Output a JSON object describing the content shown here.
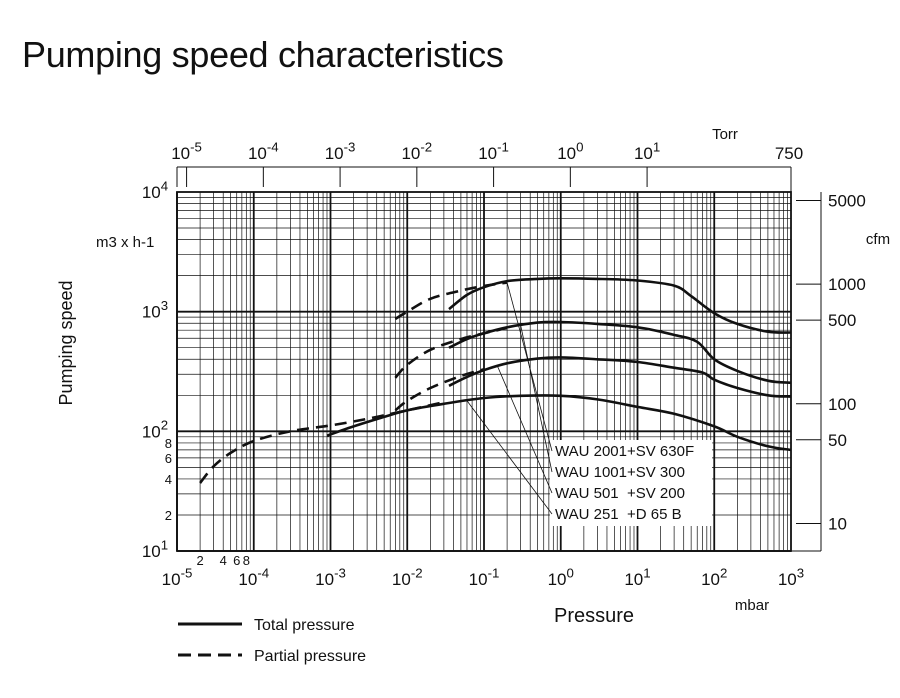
{
  "page": {
    "title": "Pumping speed characteristics"
  },
  "chart_data": {
    "type": "line",
    "x_scale": "log",
    "y_scale": "log",
    "xlim": [
      1e-05,
      1000
    ],
    "ylim": [
      10,
      10000
    ],
    "grid": true,
    "x_unit": "mbar",
    "xlabel": "Pressure",
    "ylabel": "Pumping speed",
    "y_unit_left": "m3 x h-1",
    "x_ticks": [
      {
        "value": 1e-05,
        "base": "10",
        "exp": "-5"
      },
      {
        "value": 0.0001,
        "base": "10",
        "exp": "-4"
      },
      {
        "value": 0.001,
        "base": "10",
        "exp": "-3"
      },
      {
        "value": 0.01,
        "base": "10",
        "exp": "-2"
      },
      {
        "value": 0.1,
        "base": "10",
        "exp": "-1"
      },
      {
        "value": 1,
        "base": "10",
        "exp": "0"
      },
      {
        "value": 10,
        "base": "10",
        "exp": "1"
      },
      {
        "value": 100,
        "base": "10",
        "exp": "2"
      },
      {
        "value": 1000,
        "base": "10",
        "exp": "3"
      }
    ],
    "x_minor_labels": [
      {
        "value": 2e-05,
        "label": "2"
      },
      {
        "value": 4e-05,
        "label": "4"
      },
      {
        "value": 6e-05,
        "label": "6"
      },
      {
        "value": 8e-05,
        "label": "8"
      }
    ],
    "y_ticks": [
      {
        "value": 10,
        "base": "10",
        "exp": "1"
      },
      {
        "value": 100,
        "base": "10",
        "exp": "2"
      },
      {
        "value": 1000,
        "base": "10",
        "exp": "3"
      },
      {
        "value": 10000,
        "base": "10",
        "exp": "4"
      }
    ],
    "y_minor_labels": [
      {
        "value": 20,
        "label": "2"
      },
      {
        "value": 40,
        "label": "4"
      },
      {
        "value": 60,
        "label": "6"
      },
      {
        "value": 80,
        "label": "8"
      }
    ],
    "torr_axis": {
      "unit": "Torr",
      "ticks": [
        {
          "value": 1e-05,
          "base": "10",
          "exp": "-5"
        },
        {
          "value": 0.0001,
          "base": "10",
          "exp": "-4"
        },
        {
          "value": 0.001,
          "base": "10",
          "exp": "-3"
        },
        {
          "value": 0.01,
          "base": "10",
          "exp": "-2"
        },
        {
          "value": 0.1,
          "base": "10",
          "exp": "-1"
        },
        {
          "value": 1,
          "base": "10",
          "exp": "0"
        },
        {
          "value": 10,
          "base": "10",
          "exp": "1"
        },
        {
          "value": 750,
          "base": "750",
          "exp": ""
        }
      ]
    },
    "cfm_axis": {
      "unit": "cfm",
      "ticks": [
        {
          "value": 5000,
          "label": "5000"
        },
        {
          "value": 1000,
          "label": "1000"
        },
        {
          "value": 500,
          "label": "500"
        },
        {
          "value": 100,
          "label": "100"
        },
        {
          "value": 50,
          "label": "50"
        },
        {
          "value": 10,
          "label": "10"
        }
      ]
    },
    "series": [
      {
        "name": "WAU 2001+SV 630F",
        "dashed": [
          [
            0.007,
            870
          ],
          [
            0.01,
            1000
          ],
          [
            0.02,
            1280
          ],
          [
            0.05,
            1500
          ],
          [
            0.1,
            1640
          ],
          [
            0.2,
            1750
          ]
        ],
        "solid": [
          [
            0.035,
            1050
          ],
          [
            0.06,
            1380
          ],
          [
            0.1,
            1600
          ],
          [
            0.2,
            1800
          ],
          [
            0.5,
            1880
          ],
          [
            1,
            1900
          ],
          [
            3,
            1880
          ],
          [
            10,
            1820
          ],
          [
            30,
            1650
          ],
          [
            50,
            1350
          ],
          [
            100,
            970
          ],
          [
            200,
            790
          ],
          [
            500,
            680
          ],
          [
            1000,
            670
          ]
        ]
      },
      {
        "name": "WAU 1001+SV 300",
        "dashed": [
          [
            0.007,
            280
          ],
          [
            0.01,
            360
          ],
          [
            0.02,
            480
          ],
          [
            0.05,
            590
          ],
          [
            0.1,
            660
          ],
          [
            0.2,
            730
          ]
        ],
        "solid": [
          [
            0.035,
            500
          ],
          [
            0.06,
            590
          ],
          [
            0.1,
            660
          ],
          [
            0.2,
            740
          ],
          [
            0.5,
            810
          ],
          [
            1,
            820
          ],
          [
            3,
            790
          ],
          [
            10,
            740
          ],
          [
            30,
            640
          ],
          [
            60,
            560
          ],
          [
            100,
            400
          ],
          [
            200,
            320
          ],
          [
            500,
            265
          ],
          [
            1000,
            255
          ]
        ]
      },
      {
        "name": "WAU 501  +SV 200",
        "dashed": [
          [
            0.007,
            150
          ],
          [
            0.01,
            180
          ],
          [
            0.02,
            230
          ],
          [
            0.05,
            290
          ],
          [
            0.1,
            330
          ]
        ],
        "solid": [
          [
            0.035,
            240
          ],
          [
            0.06,
            285
          ],
          [
            0.1,
            325
          ],
          [
            0.2,
            370
          ],
          [
            0.5,
            405
          ],
          [
            1,
            415
          ],
          [
            3,
            400
          ],
          [
            10,
            380
          ],
          [
            30,
            340
          ],
          [
            70,
            310
          ],
          [
            100,
            270
          ],
          [
            200,
            230
          ],
          [
            500,
            200
          ],
          [
            1000,
            195
          ]
        ]
      },
      {
        "name": "WAU 251  +D 65 B",
        "dashed": [
          [
            2e-05,
            37
          ],
          [
            3e-05,
            51
          ],
          [
            5e-05,
            66
          ],
          [
            0.0001,
            83
          ],
          [
            0.0003,
            100
          ],
          [
            0.001,
            112
          ],
          [
            0.003,
            127
          ],
          [
            0.01,
            150
          ],
          [
            0.03,
            175
          ]
        ],
        "solid": [
          [
            0.0009,
            92
          ],
          [
            0.002,
            110
          ],
          [
            0.005,
            132
          ],
          [
            0.01,
            150
          ],
          [
            0.03,
            170
          ],
          [
            0.1,
            190
          ],
          [
            0.3,
            198
          ],
          [
            1,
            198
          ],
          [
            3,
            185
          ],
          [
            10,
            160
          ],
          [
            30,
            140
          ],
          [
            100,
            110
          ],
          [
            200,
            90
          ],
          [
            500,
            75
          ],
          [
            1000,
            70
          ]
        ]
      }
    ],
    "annotations": [
      {
        "label": "WAU 2001+SV 630F",
        "points_to": [
          0.2,
          1750
        ]
      },
      {
        "label": "WAU 1001+SV 300",
        "points_to": [
          0.3,
          770
        ]
      },
      {
        "label": "WAU 501  +SV 200",
        "points_to": [
          0.15,
          350
        ]
      },
      {
        "label": "WAU 251  +D 65 B",
        "points_to": [
          0.06,
          180
        ]
      }
    ],
    "legend": {
      "position": "bottom-left",
      "items": [
        {
          "label": "Total pressure",
          "style": "solid"
        },
        {
          "label": "Partial pressure",
          "style": "dashed"
        }
      ]
    }
  }
}
